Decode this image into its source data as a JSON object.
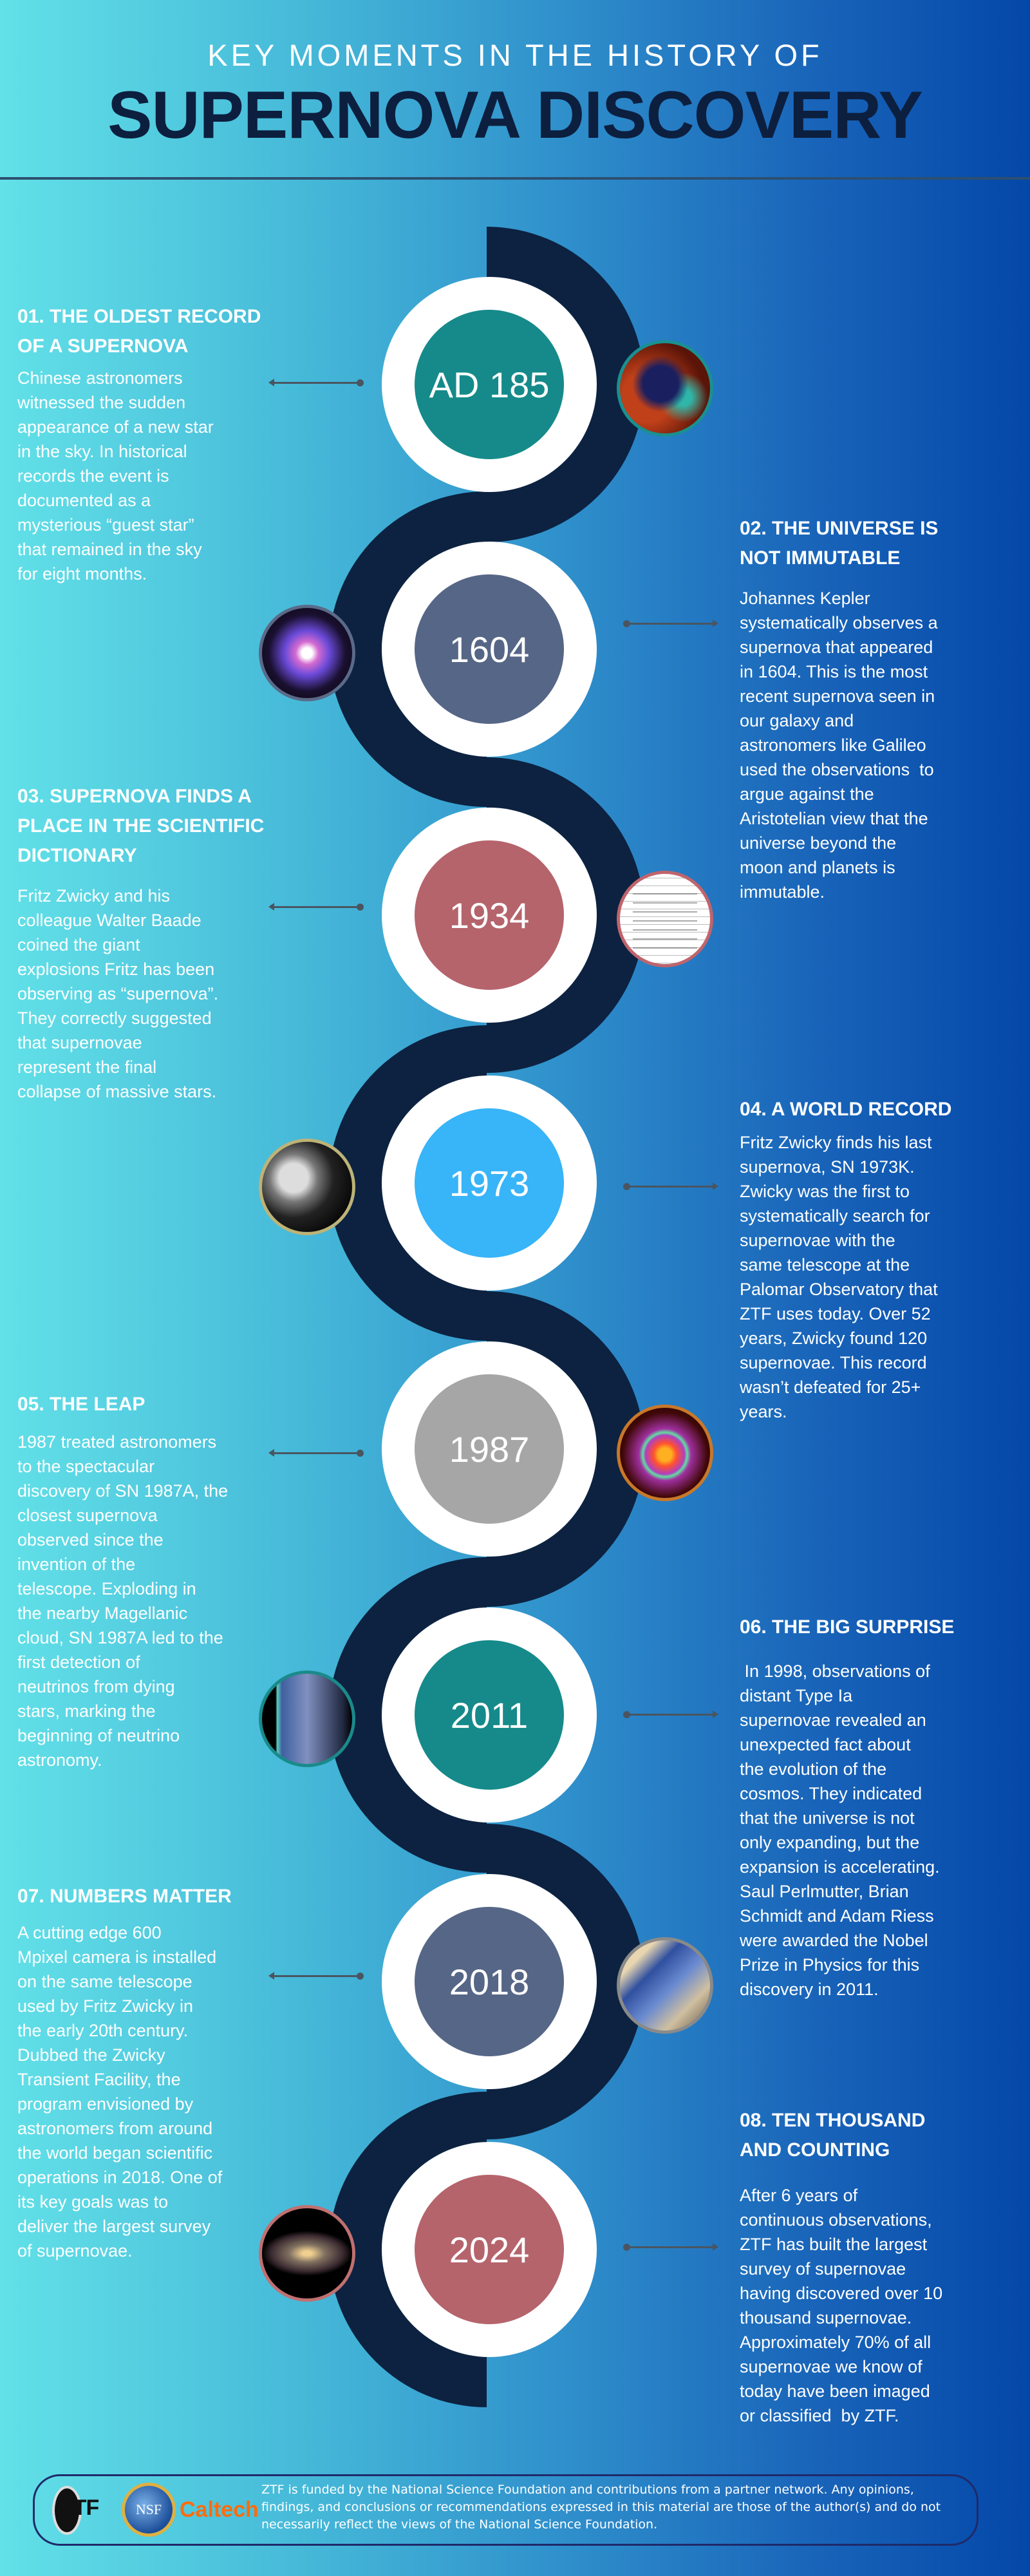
{
  "header": {
    "kicker": "KEY MOMENTS IN THE HISTORY OF",
    "title": "SUPERNOVA DISCOVERY"
  },
  "colors": {
    "snake": "#0c2240",
    "title": "#0c1f3f",
    "background_left": "#62e1e8",
    "background_right": "#0447a8"
  },
  "timeline": [
    {
      "year": "AD 185",
      "color": "#168a8a",
      "thumb_icon": "supernova-remnant-image",
      "thumb_border": "#1a9090",
      "heading": [
        "01. THE OLDEST RECORD",
        "OF A SUPERNOVA"
      ],
      "body": [
        "Chinese astronomers",
        "witnessed the sudden",
        "appearance of a new star",
        "in the sky. In historical",
        "records the event is",
        "documented as a",
        "mysterious “guest star”",
        "that remained in the sky",
        "for eight months."
      ]
    },
    {
      "year": "1604",
      "color": "#566686",
      "thumb_icon": "kepler-supernova-image",
      "thumb_border": "#5a6a88",
      "heading": [
        "02. THE UNIVERSE IS",
        "NOT IMMUTABLE"
      ],
      "body": [
        "Johannes Kepler",
        "systematically observes a",
        "supernova that appeared",
        "in 1604. This is the most",
        "recent supernova seen in",
        "our galaxy and",
        "astronomers like Galileo",
        "used the observations  to",
        "argue against the",
        "Aristotelian view that the",
        "universe beyond the",
        "moon and planets is",
        "immutable."
      ]
    },
    {
      "year": "1934",
      "color": "#b5646c",
      "thumb_icon": "scientific-paper-image",
      "thumb_border": "#c0646c",
      "heading": [
        "03. SUPERNOVA FINDS A",
        "PLACE IN THE SCIENTIFIC",
        "DICTIONARY"
      ],
      "body": [
        "Fritz Zwicky and his",
        "colleague Walter Baade",
        "coined the giant",
        "explosions Fritz has been",
        "observing as “supernova”.",
        "They correctly suggested",
        "that supernovae",
        "represent the final",
        "collapse of massive stars."
      ]
    },
    {
      "year": "1973",
      "color": "#38b4f8",
      "thumb_icon": "telescope-photo-image",
      "thumb_border": "#bdb377",
      "heading": [
        "04. A WORLD RECORD"
      ],
      "body": [
        "Fritz Zwicky finds his last",
        "supernova, SN 1973K.",
        "Zwicky was the first to",
        "systematically search for",
        "supernovae with the",
        "same telescope at the",
        "Palomar Observatory that",
        "ZTF uses today. Over 52",
        "years, Zwicky found 120",
        "supernovae. This record",
        "wasn’t defeated for 25+",
        "years."
      ]
    },
    {
      "year": "1987",
      "color": "#a6a6a6",
      "thumb_icon": "sn1987a-ring-image",
      "thumb_border": "#c8782a",
      "heading": [
        "05. THE LEAP"
      ],
      "body": [
        "1987 treated astronomers",
        "to the spectacular",
        "discovery of SN 1987A, the",
        "closest supernova",
        "observed since the",
        "invention of the",
        "telescope. Exploding in",
        "the nearby Magellanic",
        "cloud, SN 1987A led to the",
        "first detection of",
        "neutrinos from dying",
        "stars, marking the",
        "beginning of neutrino",
        "astronomy."
      ]
    },
    {
      "year": "2011",
      "color": "#168a8a",
      "thumb_icon": "universe-expansion-diagram-image",
      "thumb_border": "#1a8a8a",
      "heading": [
        "06. THE BIG SURPRISE"
      ],
      "body": [
        " In 1998, observations of",
        "distant Type Ia",
        "supernovae revealed an",
        "unexpected fact about",
        "the evolution of the",
        "cosmos. They indicated",
        "that the universe is not",
        "only expanding, but the",
        "expansion is accelerating.",
        "Saul Perlmutter, Brian",
        "Schmidt and Adam Riess",
        "were awarded the Nobel",
        "Prize in Physics for this",
        "discovery in 2011."
      ]
    },
    {
      "year": "2018",
      "color": "#566686",
      "thumb_icon": "ztf-camera-photo-image",
      "thumb_border": "#8a8a8a",
      "heading": [
        "07. NUMBERS MATTER"
      ],
      "body": [
        "A cutting edge 600",
        "Mpixel camera is installed",
        "on the same telescope",
        "used by Fritz Zwicky in",
        "the early 20th century.",
        "Dubbed the Zwicky",
        "Transient Facility, the",
        "program envisioned by",
        "astronomers from around",
        "the world began scientific",
        "operations in 2018. One of",
        "its key goals was to",
        "deliver the largest survey",
        "of supernovae."
      ]
    },
    {
      "year": "2024",
      "color": "#b5646c",
      "thumb_icon": "sky-map-supernovae-image",
      "thumb_border": "#c07070",
      "heading": [
        "08. TEN THOUSAND",
        "AND COUNTING"
      ],
      "body": [
        "After 6 years of",
        "continuous observations,",
        "ZTF has built the largest",
        "survey of supernovae",
        "having discovered over 10",
        "thousand supernovae.",
        "Approximately 70% of all",
        "supernovae we know of",
        "today have been imaged",
        "or classified  by ZTF."
      ]
    }
  ],
  "footer": {
    "logos": {
      "ztf": "ZTF",
      "nsf": "NSF",
      "caltech": "Caltech"
    },
    "text": "ZTF is funded by the National Science Foundation and contributions from a partner network. Any opinions, findings, and conclusions or recommendations expressed in this material are those of the author(s) and do not necessarily reflect the views of the National Science Foundation."
  }
}
